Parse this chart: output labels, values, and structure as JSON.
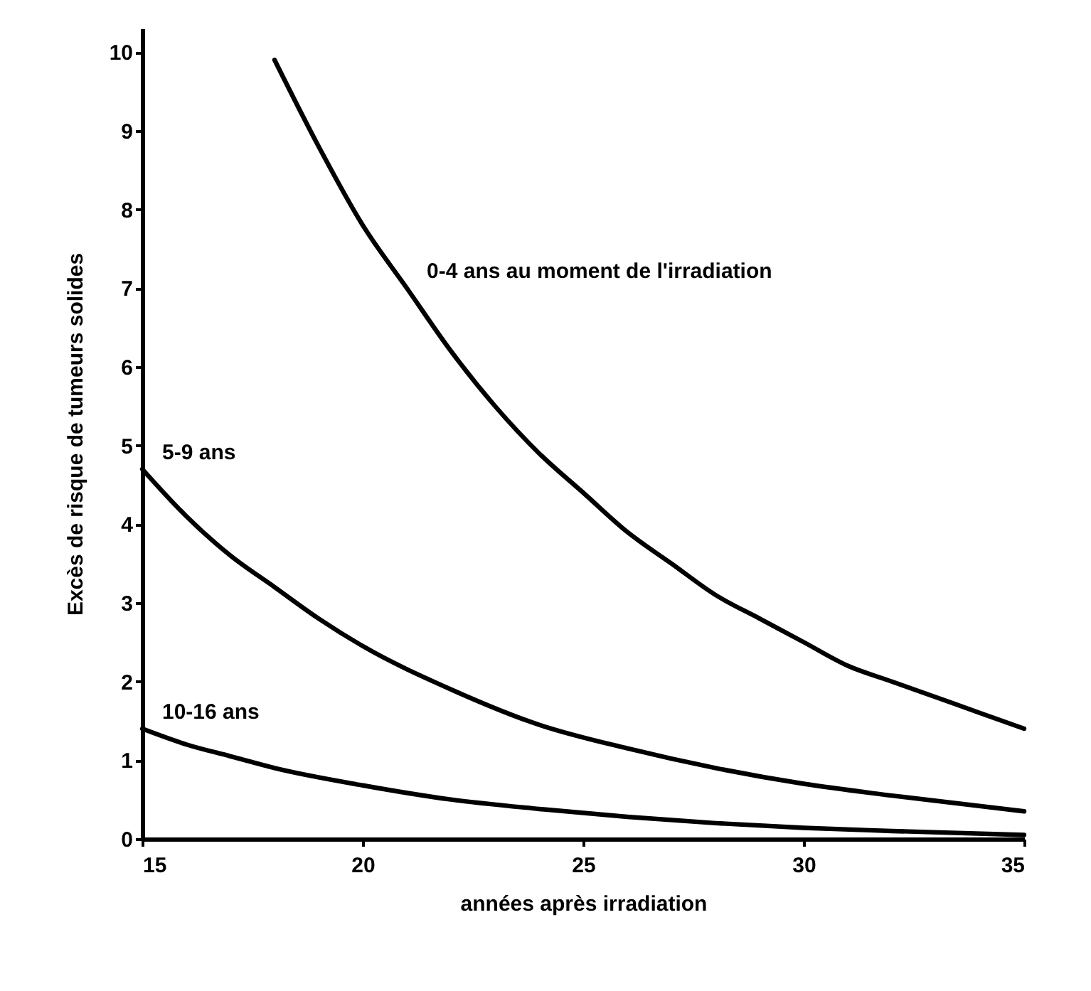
{
  "chart_data": {
    "type": "line",
    "xlabel": "années après irradiation",
    "ylabel": "Excès de risque de tumeurs solides",
    "xlim": [
      15,
      35
    ],
    "ylim": [
      0,
      10.3
    ],
    "xticks": [
      15,
      20,
      25,
      30,
      35
    ],
    "yticks": [
      0,
      1,
      2,
      3,
      4,
      5,
      6,
      7,
      8,
      9,
      10
    ],
    "grid": false,
    "marker": "none",
    "line_style": "solid",
    "series": [
      {
        "name": "0-4 ans au moment de l'irradiation",
        "color": "#000000",
        "x": [
          18,
          19,
          20,
          21,
          22,
          23,
          24,
          25,
          26,
          27,
          28,
          29,
          30,
          31,
          32,
          33,
          34,
          35
        ],
        "values": [
          9.9,
          8.8,
          7.8,
          7.0,
          6.2,
          5.5,
          4.9,
          4.4,
          3.9,
          3.5,
          3.1,
          2.8,
          2.5,
          2.2,
          2.0,
          1.8,
          1.6,
          1.4
        ]
      },
      {
        "name": "5-9 ans",
        "color": "#000000",
        "x": [
          15,
          16,
          17,
          18,
          19,
          20,
          22,
          24,
          26,
          28,
          30,
          32,
          35
        ],
        "values": [
          4.7,
          4.1,
          3.6,
          3.2,
          2.8,
          2.45,
          1.9,
          1.45,
          1.15,
          0.9,
          0.7,
          0.55,
          0.35
        ]
      },
      {
        "name": "10-16 ans",
        "color": "#000000",
        "x": [
          15,
          16,
          17,
          18,
          20,
          22,
          24,
          26,
          28,
          30,
          32,
          35
        ],
        "values": [
          1.4,
          1.2,
          1.05,
          0.9,
          0.68,
          0.5,
          0.38,
          0.28,
          0.2,
          0.14,
          0.1,
          0.05
        ]
      }
    ]
  }
}
